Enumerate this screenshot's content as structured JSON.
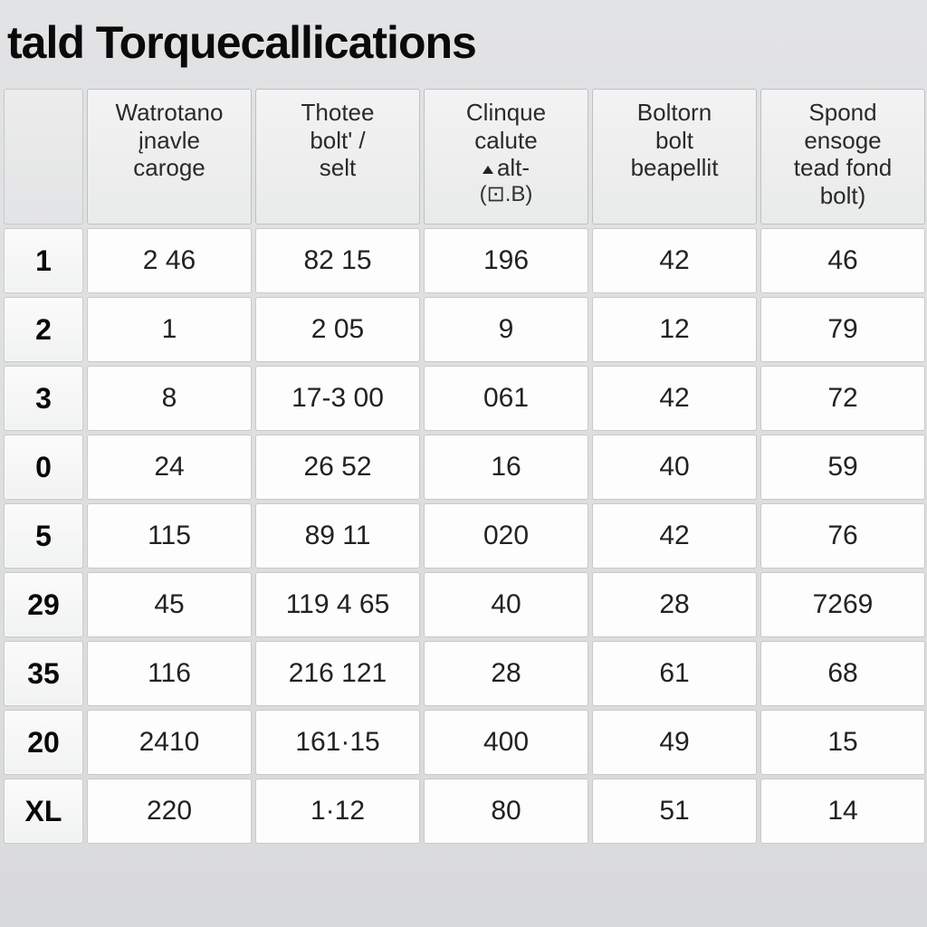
{
  "title": "tald Torquecallications",
  "table": {
    "type": "table",
    "background_color": "#dddedf",
    "cell_background": "#fdfdfd",
    "header_background": "#efeff0",
    "border_color": "#c5c6c7",
    "title_fontsize": 50,
    "header_fontsize": 26,
    "cell_fontsize": 30,
    "rowhead_fontsize": 32,
    "columns": [
      {
        "lines": [
          "Watrotano",
          "įnavle",
          "caroge"
        ]
      },
      {
        "lines": [
          "Thotee",
          "bolt' /",
          "selt"
        ]
      },
      {
        "lines": [
          "Clinque",
          "calute",
          "",
          "alt-",
          ""
        ],
        "has_arrow": true,
        "sub": "(⊡.B)"
      },
      {
        "lines": [
          "Boltorn",
          "bolt",
          "beapellit"
        ]
      },
      {
        "lines": [
          "Spond",
          "ensoge",
          "tead fond",
          "bolt)"
        ]
      }
    ],
    "rows": [
      {
        "head": "1",
        "cells": [
          "2 46",
          "82 15",
          "196",
          "42",
          "46"
        ]
      },
      {
        "head": "2",
        "cells": [
          "1",
          "2 05",
          "9",
          "12",
          "79"
        ]
      },
      {
        "head": "3",
        "cells": [
          "8",
          "17-3 00",
          "061",
          "42",
          "72"
        ]
      },
      {
        "head": "0",
        "cells": [
          "24",
          "26 52",
          "16",
          "40",
          "59"
        ]
      },
      {
        "head": "5",
        "cells": [
          "115",
          "89 11",
          "020",
          "42",
          "76"
        ]
      },
      {
        "head": "29",
        "cells": [
          "45",
          "119 4 65",
          "40",
          "28",
          "7269"
        ]
      },
      {
        "head": "35",
        "cells": [
          "116",
          "216 121",
          "28",
          "61",
          "68"
        ]
      },
      {
        "head": "20",
        "cells": [
          "2410",
          "161·15",
          "400",
          "49",
          "15"
        ]
      },
      {
        "head": "XL",
        "cells": [
          "220",
          "1·12",
          "80",
          "51",
          "14"
        ]
      }
    ]
  }
}
